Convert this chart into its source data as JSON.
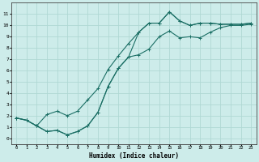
{
  "xlabel": "Humidex (Indice chaleur)",
  "bg_color": "#cdecea",
  "grid_color": "#b0d8d4",
  "line_color": "#1a6e64",
  "xlim": [
    -0.5,
    23.5
  ],
  "ylim": [
    -0.5,
    12
  ],
  "yticks": [
    0,
    1,
    2,
    3,
    4,
    5,
    6,
    7,
    8,
    9,
    10,
    11
  ],
  "xticks": [
    0,
    1,
    2,
    3,
    4,
    5,
    6,
    7,
    8,
    9,
    10,
    11,
    12,
    13,
    14,
    15,
    16,
    17,
    18,
    19,
    20,
    21,
    22,
    23
  ],
  "line_min_x": [
    0,
    1,
    2,
    3,
    4,
    5,
    6,
    7,
    8,
    9,
    10,
    11,
    12,
    13,
    14,
    15,
    16,
    17,
    18,
    19,
    20,
    21,
    22,
    23
  ],
  "line_min_y": [
    1.8,
    1.6,
    1.1,
    0.6,
    0.7,
    0.3,
    0.6,
    1.1,
    2.3,
    4.6,
    6.2,
    7.2,
    7.4,
    7.9,
    9.0,
    9.5,
    8.9,
    9.0,
    8.9,
    9.4,
    9.8,
    10.0,
    10.0,
    10.1
  ],
  "line_max_x": [
    0,
    1,
    2,
    3,
    4,
    5,
    6,
    7,
    8,
    9,
    10,
    11,
    12,
    13,
    14,
    15,
    16,
    17,
    18,
    19,
    20,
    21,
    22,
    23
  ],
  "line_max_y": [
    1.8,
    1.6,
    1.1,
    0.6,
    0.7,
    0.3,
    0.6,
    1.1,
    2.3,
    4.6,
    6.2,
    7.2,
    9.4,
    10.2,
    10.2,
    11.2,
    10.4,
    10.0,
    10.2,
    10.2,
    10.1,
    10.1,
    10.1,
    10.2
  ],
  "line_mean_x": [
    0,
    1,
    2,
    3,
    4,
    5,
    6,
    7,
    8,
    9,
    10,
    11,
    12,
    13,
    14,
    15,
    16,
    17,
    18,
    19,
    20,
    21,
    22,
    23
  ],
  "line_mean_y": [
    1.8,
    1.6,
    1.1,
    2.1,
    2.4,
    2.0,
    2.4,
    3.4,
    4.4,
    6.1,
    7.3,
    8.4,
    9.4,
    10.2,
    10.2,
    11.2,
    10.4,
    10.0,
    10.2,
    10.2,
    10.1,
    10.1,
    10.1,
    10.2
  ]
}
